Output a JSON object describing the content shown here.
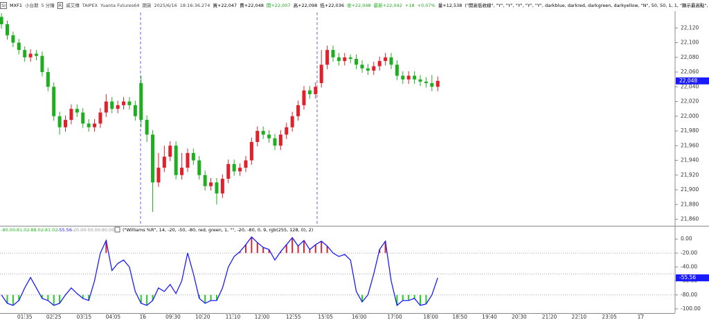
{
  "toolbar": {
    "items": [
      "SI",
      "MXF1",
      "小台期",
      "5 分鐘",
      "R",
      "威艾傳",
      "TAIPEX",
      "Yuanta Futures64",
      "期貨",
      "2025/6/16",
      "18:16:36.274",
      "買+22,047",
      "賣+22,048",
      "開+22,007",
      "高+22,098",
      "低+22,036",
      "收+22,048",
      "最新+22,042",
      "+18",
      "+0.07%",
      "量+12,538",
      "(\"開高低收線\", \"Y\", \"Y\", \"Y\", \"Y\", \"Y\", darkblue, darkred, darkgreen, darkyellow, \"N\", 50, 50, 1, 1, \"顯示最高點\", \"顯示"
    ]
  },
  "chart_data": [
    {
      "type": "candlestick",
      "up_color": "#e0202a",
      "down_color": "#1fae1f",
      "open": [
        22135,
        22125,
        22110,
        22100,
        22090,
        22080,
        22085,
        22082,
        22060,
        22040,
        22000,
        21985,
        21995,
        22010,
        22005,
        21990,
        21985,
        21990,
        22005,
        22020,
        22010,
        22015,
        22020,
        22015,
        22045,
        21995,
        21975,
        21910,
        21930,
        21945,
        21960,
        21920,
        21930,
        21950,
        21940,
        21920,
        21905,
        21910,
        21895,
        21915,
        21935,
        21925,
        21930,
        21940,
        21965,
        21980,
        21975,
        21970,
        21960,
        21975,
        21985,
        22000,
        22015,
        22035,
        22030,
        22045,
        22070,
        22090,
        22080,
        22075,
        22080,
        22078,
        22070,
        22065,
        22062,
        22068,
        22075,
        22080,
        22070,
        22055,
        22050,
        22055,
        22050,
        22047,
        22045,
        22040
      ],
      "high": [
        22140,
        22130,
        22115,
        22105,
        22095,
        22091,
        22090,
        22088,
        22066,
        22046,
        22006,
        22001,
        22016,
        22016,
        22011,
        21996,
        21996,
        22011,
        22030,
        22026,
        22021,
        22026,
        22026,
        22021,
        22055,
        22001,
        21981,
        21950,
        21960,
        21966,
        21966,
        21950,
        21956,
        21956,
        21946,
        21926,
        21916,
        21916,
        21921,
        21941,
        21941,
        21936,
        21946,
        21971,
        21986,
        21986,
        21981,
        21976,
        21981,
        21991,
        22006,
        22021,
        22041,
        22041,
        22046,
        22090,
        22096,
        22096,
        22086,
        22086,
        22084,
        22084,
        22076,
        22071,
        22074,
        22081,
        22086,
        22086,
        22076,
        22061,
        22061,
        22061,
        22056,
        22053,
        22056,
        22054
      ],
      "low": [
        22119,
        22104,
        22094,
        22084,
        22074,
        22074,
        22076,
        22054,
        22034,
        21994,
        21975,
        21979,
        21989,
        21999,
        21984,
        21979,
        21979,
        21984,
        21999,
        22004,
        22004,
        22009,
        22009,
        21994,
        21985,
        21965,
        21870,
        21904,
        21924,
        21939,
        21914,
        21914,
        21924,
        21934,
        21914,
        21899,
        21899,
        21880,
        21889,
        21909,
        21919,
        21919,
        21924,
        21934,
        21959,
        21969,
        21964,
        21954,
        21954,
        21969,
        21979,
        21994,
        22009,
        22024,
        22024,
        22039,
        22064,
        22074,
        22069,
        22069,
        22072,
        22064,
        22059,
        22056,
        22056,
        22062,
        22069,
        22064,
        22049,
        22044,
        22044,
        22044,
        22041,
        22039,
        22034,
        22034
      ],
      "close": [
        22125,
        22110,
        22100,
        22090,
        22080,
        22085,
        22082,
        22060,
        22040,
        22000,
        21985,
        21995,
        22010,
        22005,
        21990,
        21985,
        21990,
        22005,
        22020,
        22010,
        22015,
        22020,
        22015,
        22000,
        21995,
        21975,
        21910,
        21930,
        21945,
        21960,
        21920,
        21930,
        21950,
        21940,
        21920,
        21905,
        21910,
        21895,
        21915,
        21935,
        21925,
        21930,
        21940,
        21965,
        21980,
        21975,
        21970,
        21960,
        21975,
        21985,
        22000,
        22015,
        22035,
        22030,
        22040,
        22070,
        22090,
        22080,
        22075,
        22080,
        22078,
        22070,
        22065,
        22062,
        22068,
        22075,
        22080,
        22070,
        22055,
        22050,
        22055,
        22050,
        22047,
        22045,
        22040,
        22048
      ],
      "last_price_label": "22,048",
      "xlim": [
        -0.25,
        115.8
      ],
      "ylim": [
        21852,
        22141
      ],
      "yticks": [
        {
          "value": 22120,
          "label": "22,120"
        },
        {
          "value": 22100,
          "label": "22,100"
        },
        {
          "value": 22080,
          "label": "22,080"
        },
        {
          "value": 22060,
          "label": "22,060"
        },
        {
          "value": 22040,
          "label": "22,040"
        },
        {
          "value": 22020,
          "label": "22,020"
        },
        {
          "value": 22000,
          "label": "22,000"
        },
        {
          "value": 21980,
          "label": "21,980"
        },
        {
          "value": 21960,
          "label": "21,960"
        },
        {
          "value": 21940,
          "label": "21,940"
        },
        {
          "value": 21920,
          "label": "21,920"
        },
        {
          "value": 21900,
          "label": "21,900"
        },
        {
          "value": 21880,
          "label": "21,880"
        },
        {
          "value": 21860,
          "label": "21,860"
        }
      ]
    },
    {
      "type": "line",
      "readout": [
        {
          "text": "-80.00",
          "color": "#22bb22"
        },
        {
          "text": "-81.02",
          "color": "#22bb22"
        },
        {
          "text": "-88.02",
          "color": "#22bb22"
        },
        {
          "text": "-81.02",
          "color": "#22bb22"
        },
        {
          "text": "-55.56",
          "color": "#1a1aff"
        },
        {
          "text": "-20.00",
          "color": "#999999"
        },
        {
          "text": "-50.00",
          "color": "#999999"
        },
        {
          "text": "-80.00",
          "color": "#999999"
        }
      ],
      "params_text": "(\"Williams %R\", 14, -20, -50, -80, red, green, 1, \"\", -20, -80, 0, 9, rgb(255, 128, 0), 2)",
      "color": "#1a1aff",
      "upper_color": "#e0202a",
      "lower_color": "#22cc22",
      "values": [
        -80,
        -92,
        -95,
        -88,
        -70,
        -55,
        -70,
        -85,
        -88,
        -95,
        -92,
        -80,
        -70,
        -78,
        -85,
        -88,
        -60,
        -20,
        -2,
        -45,
        -35,
        -30,
        -40,
        -75,
        -92,
        -95,
        -88,
        -70,
        -75,
        -65,
        -78,
        -60,
        -20,
        -50,
        -85,
        -92,
        -88,
        -88,
        -70,
        -40,
        -25,
        -18,
        -8,
        3,
        -5,
        -12,
        -15,
        -30,
        -18,
        -8,
        2,
        -10,
        -2,
        -15,
        -8,
        -3,
        -10,
        -20,
        -25,
        -22,
        -30,
        -75,
        -90,
        -80,
        -50,
        -15,
        -3,
        -60,
        -95,
        -88,
        -88,
        -85,
        -95,
        -93,
        -80,
        -55.56
      ],
      "last_value_label": "-55.56",
      "levels": [
        -20,
        -50,
        -80
      ],
      "ylim": [
        -105,
        17
      ],
      "yticks": [
        {
          "value": 0,
          "label": "0.00"
        },
        {
          "value": -20,
          "label": "-20.00"
        },
        {
          "value": -40,
          "label": "-40.00"
        },
        {
          "value": -60,
          "label": "-60.00"
        },
        {
          "value": -80,
          "label": "-80.00"
        },
        {
          "value": -100,
          "label": "-100.00"
        }
      ],
      "xticks": [
        {
          "value": 4,
          "label": "01:35"
        },
        {
          "value": 9,
          "label": "02:25"
        },
        {
          "value": 14.2,
          "label": "03:15"
        },
        {
          "value": 19.2,
          "label": "04:05"
        },
        {
          "value": 24.3,
          "label": "16"
        },
        {
          "value": 29.5,
          "label": "09:30"
        },
        {
          "value": 34.6,
          "label": "10:20"
        },
        {
          "value": 39.8,
          "label": "11:10"
        },
        {
          "value": 44.8,
          "label": "12:00"
        },
        {
          "value": 50.2,
          "label": "12:55"
        },
        {
          "value": 55.7,
          "label": "15:05"
        },
        {
          "value": 61.5,
          "label": "16:00"
        },
        {
          "value": 67.6,
          "label": "17:00"
        },
        {
          "value": 73.8,
          "label": "18:00"
        },
        {
          "value": 78.8,
          "label": "18:50"
        },
        {
          "value": 83.9,
          "label": "19:40"
        },
        {
          "value": 89,
          "label": "20:30"
        },
        {
          "value": 94.2,
          "label": "21:20"
        },
        {
          "value": 99.3,
          "label": "22:10"
        },
        {
          "value": 104.5,
          "label": "23:05"
        },
        {
          "value": 109.9,
          "label": "17"
        }
      ]
    }
  ]
}
